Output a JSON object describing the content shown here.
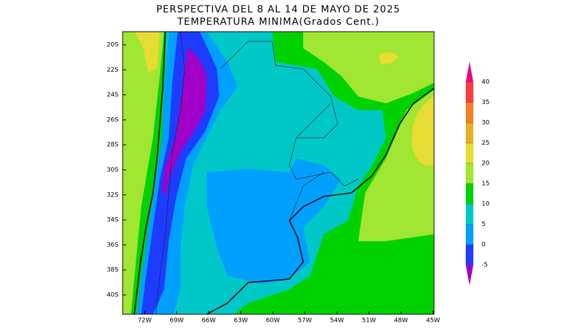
{
  "title": [
    "PERSPECTIVA DEL 8 AL 14 DE MAYO DE 2025",
    "TEMPERATURA MINIMA(Grados Cent.)"
  ],
  "latitudes": [
    "20S",
    "22S",
    "24S",
    "26S",
    "28S",
    "30S",
    "32S",
    "34S",
    "36S",
    "38S",
    "40S"
  ],
  "longitudes": [
    "72W",
    "69W",
    "66W",
    "63W",
    "60W",
    "57W",
    "54W",
    "51W",
    "48W",
    "45W"
  ],
  "colorbar": {
    "ticks": [
      -5,
      0,
      5,
      10,
      15,
      20,
      25,
      30,
      35,
      40
    ],
    "colors": [
      "#a000c8",
      "#1e3cff",
      "#00a0ff",
      "#00c8c8",
      "#00d200",
      "#a0e632",
      "#e6dc32",
      "#e6af2d",
      "#f08228",
      "#fa3c3c",
      "#f00082"
    ]
  }
}
